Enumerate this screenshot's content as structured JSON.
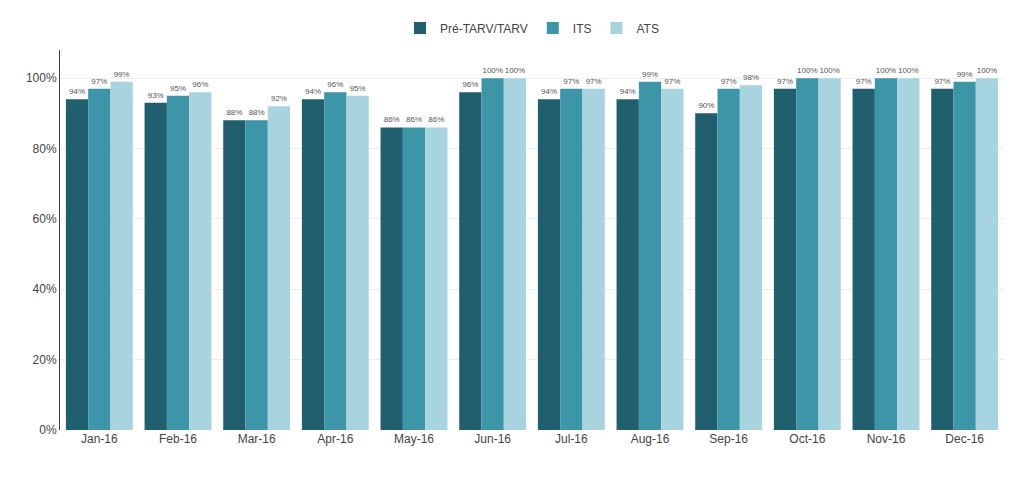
{
  "chart_data": {
    "type": "bar",
    "categories": [
      "Jan-16",
      "Feb-16",
      "Mar-16",
      "Apr-16",
      "May-16",
      "Jun-16",
      "Jul-16",
      "Aug-16",
      "Sep-16",
      "Oct-16",
      "Nov-16",
      "Dec-16"
    ],
    "series": [
      {
        "name": "Pré-TARV/TARV",
        "color": "#1f5f6e",
        "values": [
          94,
          93,
          88,
          94,
          86,
          96,
          94,
          94,
          90,
          97,
          97,
          97
        ],
        "value_labels": [
          "94%",
          "93%",
          "88%",
          "94%",
          "86%",
          "96%",
          "94%",
          "94%",
          "90%",
          "97%",
          "97%",
          "97%"
        ]
      },
      {
        "name": "ITS",
        "color": "#3d96a8",
        "values": [
          97,
          95,
          88,
          96,
          86,
          100,
          97,
          99,
          97,
          100,
          100,
          99
        ],
        "value_labels": [
          "97%",
          "95%",
          "88%",
          "96%",
          "86%",
          "100%",
          "97%",
          "99%",
          "97%",
          "100%",
          "100%",
          "99%"
        ]
      },
      {
        "name": "ATS",
        "color": "#a8d4e0",
        "values": [
          99,
          96,
          92,
          95,
          86,
          100,
          97,
          97,
          98,
          100,
          100,
          100
        ],
        "value_labels": [
          "99%",
          "96%",
          "92%",
          "95%",
          "86%",
          "100%",
          "97%",
          "97%",
          "98%",
          "100%",
          "100%",
          "100%"
        ]
      }
    ],
    "ylim": [
      0,
      108
    ],
    "yticks": [
      {
        "value": 0,
        "label": "0%"
      },
      {
        "value": 20,
        "label": "20%"
      },
      {
        "value": 40,
        "label": "40%"
      },
      {
        "value": 60,
        "label": "60%"
      },
      {
        "value": 80,
        "label": "80%"
      },
      {
        "value": 100,
        "label": "100%"
      }
    ],
    "grid": true,
    "data_labels": true,
    "legend": "top"
  }
}
